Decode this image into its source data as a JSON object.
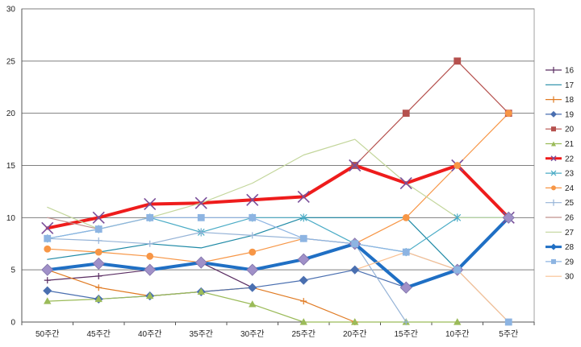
{
  "chart_data": {
    "type": "line",
    "title": "",
    "xlabel": "",
    "ylabel": "",
    "categories": [
      "50주간",
      "45주간",
      "40주간",
      "35주간",
      "30주간",
      "25주간",
      "20주간",
      "15주간",
      "10주간",
      "5주간"
    ],
    "ylim": [
      0,
      30
    ],
    "yticks": [
      0,
      5,
      10,
      15,
      20,
      25,
      30
    ],
    "grid": "horizontal",
    "legend": "right",
    "series": [
      {
        "name": "16",
        "color": "#5a2d62",
        "marker": "plus",
        "width": 1.2,
        "values": [
          4,
          4.4,
          5,
          5.7,
          3.3,
          null,
          null,
          null,
          null,
          null
        ]
      },
      {
        "name": "17",
        "color": "#1f8aa6",
        "marker": "none",
        "width": 1.2,
        "values": [
          6,
          6.7,
          7.5,
          7.1,
          8.3,
          10,
          10,
          10,
          5,
          null
        ]
      },
      {
        "name": "18",
        "color": "#e07a22",
        "marker": "plus",
        "width": 1.2,
        "values": [
          5,
          3.3,
          2.5,
          2.9,
          3.3,
          2,
          0,
          null,
          null,
          null
        ]
      },
      {
        "name": "19",
        "color": "#4a6fb0",
        "marker": "diamond",
        "width": 1.2,
        "values": [
          3,
          2.2,
          2.5,
          2.9,
          3.3,
          4,
          5,
          3.3,
          null,
          null
        ]
      },
      {
        "name": "20",
        "color": "#b5504d",
        "marker": "square",
        "width": 1.2,
        "values": [
          null,
          null,
          null,
          null,
          null,
          null,
          15,
          20,
          25,
          20
        ]
      },
      {
        "name": "21",
        "color": "#9bbb59",
        "marker": "triangle",
        "width": 1.2,
        "values": [
          2,
          2.2,
          2.5,
          2.9,
          1.7,
          0,
          0,
          0,
          0,
          null
        ]
      },
      {
        "name": "22",
        "color": "#ee1c1c",
        "marker": "x",
        "width": 4,
        "values": [
          9,
          10,
          11.3,
          11.4,
          11.7,
          12,
          15,
          13.3,
          15,
          10
        ]
      },
      {
        "name": "23",
        "color": "#4bacc6",
        "marker": "star",
        "width": 1.2,
        "values": [
          8,
          8.9,
          10,
          8.6,
          10,
          10,
          7.5,
          6.7,
          10,
          10
        ]
      },
      {
        "name": "24",
        "color": "#f79646",
        "marker": "circle",
        "width": 1.2,
        "values": [
          7,
          6.7,
          6.3,
          5.7,
          6.7,
          8,
          7.5,
          10,
          15,
          20
        ]
      },
      {
        "name": "25",
        "color": "#95b3d7",
        "marker": "plus",
        "width": 1.2,
        "values": [
          8,
          7.8,
          7.5,
          8.6,
          8.3,
          8,
          7.5,
          0,
          null,
          null
        ]
      },
      {
        "name": "26",
        "color": "#c0908e",
        "marker": "none",
        "width": 1.2,
        "values": [
          10,
          8.9,
          null,
          null,
          null,
          null,
          null,
          null,
          null,
          null
        ]
      },
      {
        "name": "27",
        "color": "#c3d69b",
        "marker": "none",
        "width": 1.2,
        "values": [
          11,
          8.9,
          10,
          11.4,
          13.3,
          16,
          17.5,
          13.3,
          10,
          10
        ]
      },
      {
        "name": "28",
        "color": "#1f6fc4",
        "marker": "diamond",
        "width": 4,
        "values": [
          5,
          5.6,
          5,
          5.7,
          5,
          6,
          7.5,
          3.3,
          5,
          10
        ]
      },
      {
        "name": "29",
        "color": "#8db4e2",
        "marker": "square",
        "width": 1.2,
        "values": [
          8,
          8.9,
          10,
          10,
          10,
          8,
          7.5,
          6.7,
          5,
          0
        ]
      },
      {
        "name": "30",
        "color": "#fac090",
        "marker": "none",
        "width": 1.2,
        "values": [
          null,
          null,
          null,
          null,
          null,
          null,
          5,
          6.7,
          5,
          0
        ]
      }
    ]
  }
}
